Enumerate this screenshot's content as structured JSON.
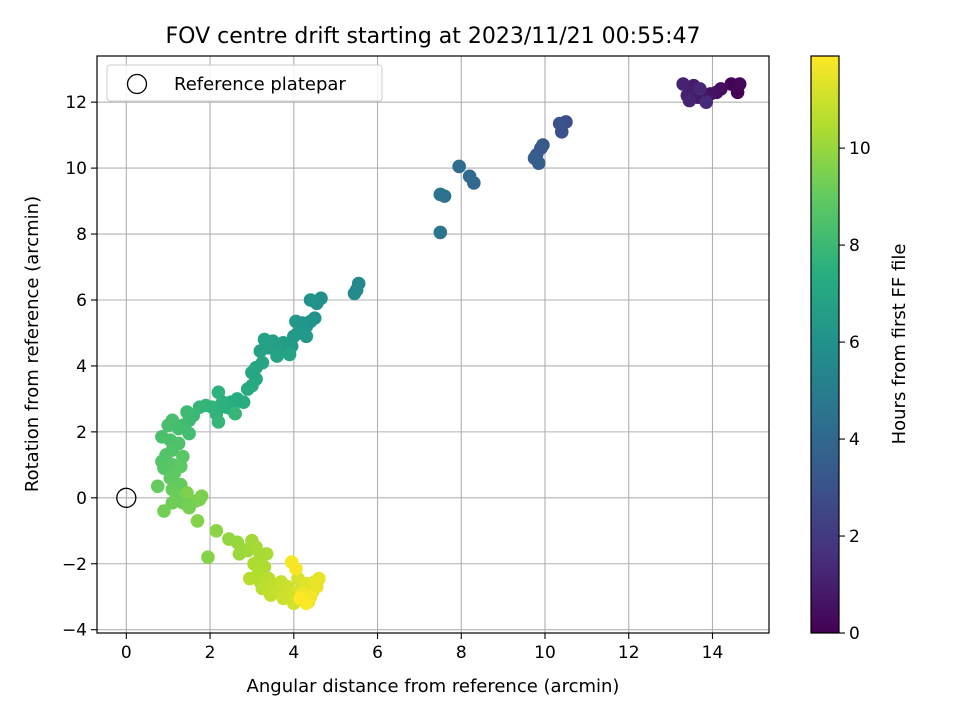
{
  "chart_data": {
    "type": "scatter",
    "title": "FOV centre drift starting at 2023/11/21 00:55:47",
    "xlabel": "Angular distance from reference (arcmin)",
    "ylabel": "Rotation from reference (arcmin)",
    "xlim": [
      -0.7,
      15.35
    ],
    "ylim": [
      -4.1,
      13.4
    ],
    "xticks": [
      0,
      2,
      4,
      6,
      8,
      10,
      12,
      14
    ],
    "yticks": [
      -4,
      -2,
      0,
      2,
      4,
      6,
      8,
      10,
      12
    ],
    "grid": true,
    "legend": {
      "placement": "top-left",
      "entries": [
        "Reference platepar"
      ]
    },
    "reference_point": {
      "x": 0,
      "y": 0
    },
    "colorbar": {
      "label": "Hours from first FF file",
      "range": [
        0,
        11.9
      ],
      "ticks": [
        0,
        2,
        4,
        6,
        8,
        10
      ],
      "colormap": "viridis"
    },
    "points": [
      {
        "x": 14.6,
        "y": 12.3,
        "h": 0.0
      },
      {
        "x": 14.55,
        "y": 12.5,
        "h": 0.1
      },
      {
        "x": 14.45,
        "y": 12.55,
        "h": 0.15
      },
      {
        "x": 14.65,
        "y": 12.55,
        "h": 0.2
      },
      {
        "x": 14.2,
        "y": 12.4,
        "h": 0.4
      },
      {
        "x": 14.1,
        "y": 12.3,
        "h": 0.5
      },
      {
        "x": 13.95,
        "y": 12.25,
        "h": 0.6
      },
      {
        "x": 13.8,
        "y": 12.1,
        "h": 0.7
      },
      {
        "x": 13.65,
        "y": 12.15,
        "h": 0.8
      },
      {
        "x": 13.55,
        "y": 12.5,
        "h": 0.9
      },
      {
        "x": 13.4,
        "y": 12.2,
        "h": 1.0
      },
      {
        "x": 13.3,
        "y": 12.55,
        "h": 1.1
      },
      {
        "x": 13.45,
        "y": 12.05,
        "h": 1.2
      },
      {
        "x": 13.7,
        "y": 12.4,
        "h": 1.3
      },
      {
        "x": 13.85,
        "y": 12.0,
        "h": 1.4
      },
      {
        "x": 10.5,
        "y": 11.4,
        "h": 2.8
      },
      {
        "x": 10.4,
        "y": 11.1,
        "h": 2.9
      },
      {
        "x": 10.35,
        "y": 11.35,
        "h": 3.0
      },
      {
        "x": 9.95,
        "y": 10.7,
        "h": 3.2
      },
      {
        "x": 9.9,
        "y": 10.6,
        "h": 3.3
      },
      {
        "x": 9.8,
        "y": 10.4,
        "h": 3.4
      },
      {
        "x": 9.75,
        "y": 10.3,
        "h": 3.5
      },
      {
        "x": 9.85,
        "y": 10.15,
        "h": 3.55
      },
      {
        "x": 8.3,
        "y": 9.55,
        "h": 4.0
      },
      {
        "x": 8.2,
        "y": 9.75,
        "h": 4.1
      },
      {
        "x": 7.95,
        "y": 10.05,
        "h": 4.2
      },
      {
        "x": 7.6,
        "y": 9.15,
        "h": 4.4
      },
      {
        "x": 7.5,
        "y": 9.2,
        "h": 4.5
      },
      {
        "x": 7.5,
        "y": 8.05,
        "h": 4.6
      },
      {
        "x": 5.55,
        "y": 6.5,
        "h": 5.5
      },
      {
        "x": 5.5,
        "y": 6.3,
        "h": 5.55
      },
      {
        "x": 5.45,
        "y": 6.2,
        "h": 5.6
      },
      {
        "x": 4.65,
        "y": 6.05,
        "h": 5.9
      },
      {
        "x": 4.55,
        "y": 5.9,
        "h": 5.95
      },
      {
        "x": 4.4,
        "y": 6.0,
        "h": 6.0
      },
      {
        "x": 4.5,
        "y": 5.45,
        "h": 6.05
      },
      {
        "x": 4.4,
        "y": 5.35,
        "h": 6.1
      },
      {
        "x": 4.3,
        "y": 5.2,
        "h": 6.15
      },
      {
        "x": 4.2,
        "y": 5.3,
        "h": 6.2
      },
      {
        "x": 4.05,
        "y": 5.35,
        "h": 6.25
      },
      {
        "x": 4.1,
        "y": 5.0,
        "h": 6.3
      },
      {
        "x": 4.3,
        "y": 4.9,
        "h": 6.35
      },
      {
        "x": 4.0,
        "y": 4.9,
        "h": 6.4
      },
      {
        "x": 3.95,
        "y": 4.6,
        "h": 6.45
      },
      {
        "x": 3.85,
        "y": 4.45,
        "h": 6.5
      },
      {
        "x": 3.75,
        "y": 4.7,
        "h": 6.55
      },
      {
        "x": 3.6,
        "y": 4.5,
        "h": 6.6
      },
      {
        "x": 3.5,
        "y": 4.75,
        "h": 6.65
      },
      {
        "x": 3.4,
        "y": 4.55,
        "h": 6.7
      },
      {
        "x": 3.3,
        "y": 4.8,
        "h": 6.75
      },
      {
        "x": 3.2,
        "y": 4.45,
        "h": 6.8
      },
      {
        "x": 3.6,
        "y": 4.3,
        "h": 6.85
      },
      {
        "x": 3.9,
        "y": 4.35,
        "h": 6.9
      },
      {
        "x": 3.25,
        "y": 4.1,
        "h": 6.95
      },
      {
        "x": 3.1,
        "y": 3.95,
        "h": 7.0
      },
      {
        "x": 3.0,
        "y": 3.8,
        "h": 7.05
      },
      {
        "x": 3.1,
        "y": 3.6,
        "h": 7.1
      },
      {
        "x": 3.0,
        "y": 3.4,
        "h": 7.15
      },
      {
        "x": 2.9,
        "y": 3.3,
        "h": 7.2
      },
      {
        "x": 2.8,
        "y": 2.9,
        "h": 7.3
      },
      {
        "x": 2.65,
        "y": 3.0,
        "h": 7.35
      },
      {
        "x": 2.5,
        "y": 2.9,
        "h": 7.4
      },
      {
        "x": 2.55,
        "y": 2.65,
        "h": 7.45
      },
      {
        "x": 2.4,
        "y": 2.75,
        "h": 7.5
      },
      {
        "x": 2.3,
        "y": 2.9,
        "h": 7.55
      },
      {
        "x": 2.2,
        "y": 3.2,
        "h": 7.6
      },
      {
        "x": 2.15,
        "y": 2.55,
        "h": 7.65
      },
      {
        "x": 2.05,
        "y": 2.75,
        "h": 7.7
      },
      {
        "x": 1.9,
        "y": 2.8,
        "h": 7.75
      },
      {
        "x": 1.75,
        "y": 2.75,
        "h": 7.8
      },
      {
        "x": 2.2,
        "y": 2.3,
        "h": 7.85
      },
      {
        "x": 2.6,
        "y": 2.55,
        "h": 7.9
      },
      {
        "x": 1.6,
        "y": 2.5,
        "h": 8.0
      },
      {
        "x": 1.5,
        "y": 2.35,
        "h": 8.05
      },
      {
        "x": 1.45,
        "y": 2.6,
        "h": 8.1
      },
      {
        "x": 1.35,
        "y": 2.2,
        "h": 8.15
      },
      {
        "x": 1.5,
        "y": 1.95,
        "h": 8.2
      },
      {
        "x": 1.25,
        "y": 2.1,
        "h": 8.25
      },
      {
        "x": 1.1,
        "y": 2.35,
        "h": 8.3
      },
      {
        "x": 1.0,
        "y": 2.2,
        "h": 8.35
      },
      {
        "x": 0.85,
        "y": 1.85,
        "h": 8.4
      },
      {
        "x": 1.05,
        "y": 1.75,
        "h": 8.45
      },
      {
        "x": 1.25,
        "y": 1.65,
        "h": 8.5
      },
      {
        "x": 1.1,
        "y": 1.45,
        "h": 8.55
      },
      {
        "x": 0.95,
        "y": 1.3,
        "h": 8.6
      },
      {
        "x": 0.85,
        "y": 1.1,
        "h": 8.65
      },
      {
        "x": 0.9,
        "y": 0.9,
        "h": 8.7
      },
      {
        "x": 1.1,
        "y": 1.0,
        "h": 8.75
      },
      {
        "x": 1.35,
        "y": 1.25,
        "h": 8.8
      },
      {
        "x": 1.3,
        "y": 0.95,
        "h": 8.85
      },
      {
        "x": 1.15,
        "y": 0.75,
        "h": 8.9
      },
      {
        "x": 1.05,
        "y": 0.6,
        "h": 8.95
      },
      {
        "x": 1.3,
        "y": 0.4,
        "h": 9.0
      },
      {
        "x": 0.75,
        "y": 0.35,
        "h": 9.05
      },
      {
        "x": 1.1,
        "y": 0.25,
        "h": 9.1
      },
      {
        "x": 1.2,
        "y": 0.05,
        "h": 9.15
      },
      {
        "x": 1.35,
        "y": -0.15,
        "h": 9.2
      },
      {
        "x": 1.1,
        "y": -0.15,
        "h": 9.25
      },
      {
        "x": 0.9,
        "y": -0.4,
        "h": 9.3
      },
      {
        "x": 1.65,
        "y": -0.1,
        "h": 9.35
      },
      {
        "x": 1.5,
        "y": -0.3,
        "h": 9.4
      },
      {
        "x": 1.75,
        "y": -0.05,
        "h": 9.45
      },
      {
        "x": 1.8,
        "y": 0.05,
        "h": 9.5
      },
      {
        "x": 1.45,
        "y": 0.15,
        "h": 9.55
      },
      {
        "x": 1.7,
        "y": -0.7,
        "h": 9.6
      },
      {
        "x": 1.95,
        "y": -1.8,
        "h": 9.7
      },
      {
        "x": 2.15,
        "y": -1.0,
        "h": 9.8
      },
      {
        "x": 2.45,
        "y": -1.25,
        "h": 9.9
      },
      {
        "x": 2.65,
        "y": -1.35,
        "h": 10.0
      },
      {
        "x": 2.75,
        "y": -1.55,
        "h": 10.05
      },
      {
        "x": 2.7,
        "y": -1.7,
        "h": 10.1
      },
      {
        "x": 2.9,
        "y": -1.6,
        "h": 10.15
      },
      {
        "x": 3.0,
        "y": -1.3,
        "h": 10.2
      },
      {
        "x": 3.1,
        "y": -1.5,
        "h": 10.25
      },
      {
        "x": 3.2,
        "y": -1.75,
        "h": 10.3
      },
      {
        "x": 3.35,
        "y": -1.7,
        "h": 10.35
      },
      {
        "x": 3.05,
        "y": -2.0,
        "h": 10.4
      },
      {
        "x": 3.3,
        "y": -2.1,
        "h": 10.45
      },
      {
        "x": 3.15,
        "y": -2.3,
        "h": 10.5
      },
      {
        "x": 2.95,
        "y": -2.45,
        "h": 10.55
      },
      {
        "x": 3.2,
        "y": -2.55,
        "h": 10.6
      },
      {
        "x": 3.4,
        "y": -2.45,
        "h": 10.65
      },
      {
        "x": 3.25,
        "y": -2.75,
        "h": 10.7
      },
      {
        "x": 3.5,
        "y": -2.65,
        "h": 10.75
      },
      {
        "x": 3.45,
        "y": -2.95,
        "h": 10.8
      },
      {
        "x": 3.65,
        "y": -2.85,
        "h": 10.85
      },
      {
        "x": 3.7,
        "y": -2.55,
        "h": 10.9
      },
      {
        "x": 3.85,
        "y": -2.7,
        "h": 10.95
      },
      {
        "x": 3.75,
        "y": -3.05,
        "h": 11.0
      },
      {
        "x": 3.95,
        "y": -2.9,
        "h": 11.05
      },
      {
        "x": 4.0,
        "y": -3.2,
        "h": 11.1
      },
      {
        "x": 4.1,
        "y": -2.45,
        "h": 11.15
      },
      {
        "x": 4.15,
        "y": -2.8,
        "h": 11.2
      },
      {
        "x": 4.25,
        "y": -3.05,
        "h": 11.25
      },
      {
        "x": 4.35,
        "y": -3.15,
        "h": 11.3
      },
      {
        "x": 4.3,
        "y": -2.6,
        "h": 11.35
      },
      {
        "x": 4.45,
        "y": -2.85,
        "h": 11.4
      },
      {
        "x": 4.5,
        "y": -2.55,
        "h": 11.45
      },
      {
        "x": 4.6,
        "y": -2.45,
        "h": 11.5
      },
      {
        "x": 4.55,
        "y": -2.7,
        "h": 11.55
      },
      {
        "x": 4.2,
        "y": -2.9,
        "h": 11.6
      },
      {
        "x": 4.4,
        "y": -3.0,
        "h": 11.7
      },
      {
        "x": 3.95,
        "y": -1.95,
        "h": 11.75
      },
      {
        "x": 4.05,
        "y": -2.15,
        "h": 11.8
      },
      {
        "x": 4.3,
        "y": -3.2,
        "h": 11.85
      },
      {
        "x": 4.15,
        "y": -3.05,
        "h": 11.9
      }
    ]
  }
}
